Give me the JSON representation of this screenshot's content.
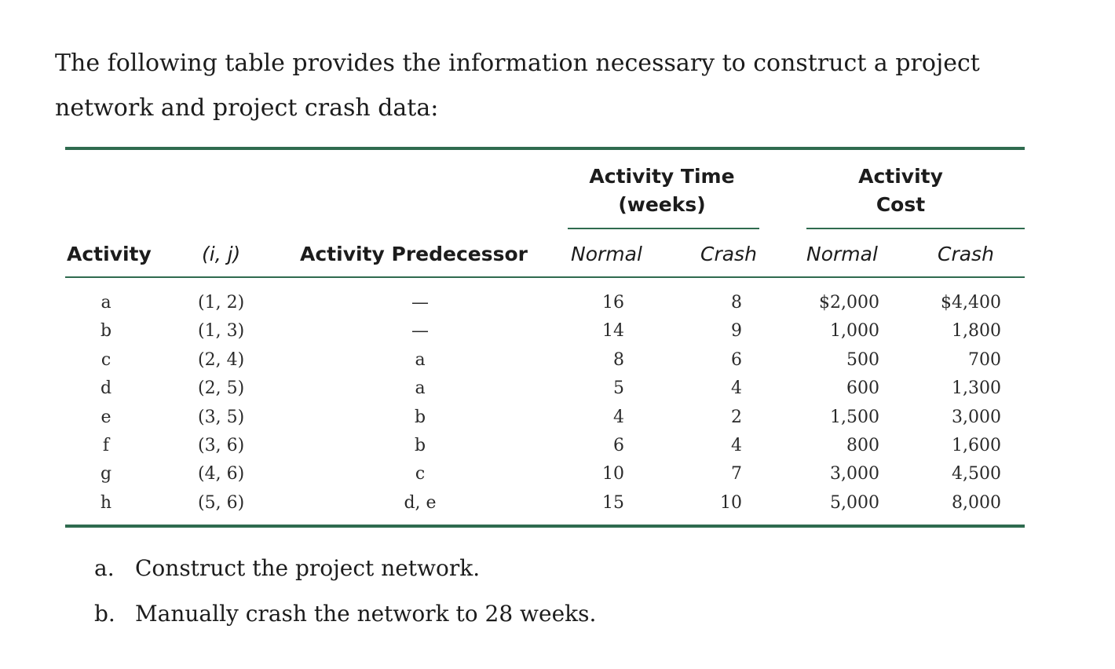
{
  "intro": "The following table provides the information necessary to construct a project network and project crash data:",
  "table": {
    "group_time": [
      "Activity Time",
      "(weeks)"
    ],
    "group_cost": [
      "Activity",
      "Cost"
    ],
    "headers": {
      "activity": "Activity",
      "ij": "(i, j)",
      "predecessor": "Activity Predecessor",
      "time_normal": "Normal",
      "time_crash": "Crash",
      "cost_normal": "Normal",
      "cost_crash": "Crash"
    },
    "rows": [
      {
        "activity": "a",
        "ij": "(1, 2)",
        "predecessor": "—",
        "time_normal": "16",
        "time_crash": "8",
        "cost_normal": "$2,000",
        "cost_crash": "$4,400"
      },
      {
        "activity": "b",
        "ij": "(1, 3)",
        "predecessor": "—",
        "time_normal": "14",
        "time_crash": "9",
        "cost_normal": "1,000",
        "cost_crash": "1,800"
      },
      {
        "activity": "c",
        "ij": "(2, 4)",
        "predecessor": "a",
        "time_normal": "8",
        "time_crash": "6",
        "cost_normal": "500",
        "cost_crash": "700"
      },
      {
        "activity": "d",
        "ij": "(2, 5)",
        "predecessor": "a",
        "time_normal": "5",
        "time_crash": "4",
        "cost_normal": "600",
        "cost_crash": "1,300"
      },
      {
        "activity": "e",
        "ij": "(3, 5)",
        "predecessor": "b",
        "time_normal": "4",
        "time_crash": "2",
        "cost_normal": "1,500",
        "cost_crash": "3,000"
      },
      {
        "activity": "f",
        "ij": "(3, 6)",
        "predecessor": "b",
        "time_normal": "6",
        "time_crash": "4",
        "cost_normal": "800",
        "cost_crash": "1,600"
      },
      {
        "activity": "g",
        "ij": "(4, 6)",
        "predecessor": "c",
        "time_normal": "10",
        "time_crash": "7",
        "cost_normal": "3,000",
        "cost_crash": "4,500"
      },
      {
        "activity": "h",
        "ij": "(5, 6)",
        "predecessor": "d, e",
        "time_normal": "15",
        "time_crash": "10",
        "cost_normal": "5,000",
        "cost_crash": "8,000"
      }
    ]
  },
  "questions": [
    {
      "letter": "a.",
      "text": "Construct the project network."
    },
    {
      "letter": "b.",
      "text": "Manually crash the network to 28 weeks."
    }
  ]
}
